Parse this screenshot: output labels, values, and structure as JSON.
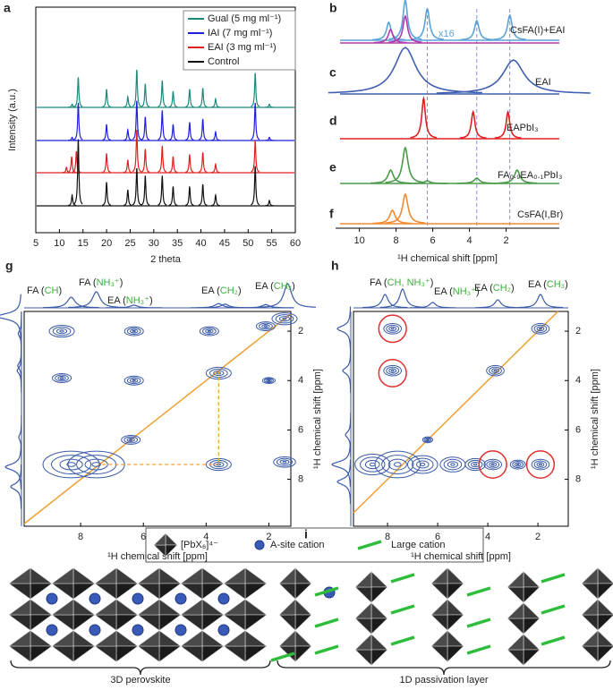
{
  "chart_data": [
    {
      "type": "xrd",
      "label": "a",
      "xlabel": "2 theta",
      "ylabel": "Intensity (a.u.)",
      "xlim": [
        5,
        60
      ],
      "xticks": [
        5,
        10,
        15,
        20,
        25,
        30,
        35,
        40,
        45,
        50,
        55,
        60
      ],
      "legend": "upper right",
      "peak_width": 0.15,
      "series": [
        {
          "name": "Gual (5 mg ml⁻¹)",
          "color": "#1a8a7a",
          "x": [
            12.7,
            14.0,
            20.0,
            24.5,
            26.4,
            28.2,
            31.8,
            34.1,
            37.6,
            40.4,
            43.1,
            51.5,
            54.5
          ],
          "values": [
            3,
            28,
            17,
            10,
            35,
            22,
            25,
            15,
            17,
            18,
            8,
            32,
            3
          ]
        },
        {
          "name": "IAI (7 mg ml⁻¹)",
          "color": "#1f1fe0",
          "x": [
            12.7,
            14.0,
            20.0,
            24.5,
            26.4,
            28.2,
            31.8,
            34.1,
            37.6,
            40.4,
            43.1,
            51.5,
            54.5
          ],
          "values": [
            3,
            35,
            15,
            10,
            37,
            22,
            28,
            15,
            17,
            20,
            8,
            35,
            3
          ]
        },
        {
          "name": "EAI (3 mg ml⁻¹)",
          "color": "#e02020",
          "x": [
            11.5,
            12.6,
            13.6,
            20.0,
            24.5,
            26.4,
            28.2,
            31.8,
            34.1,
            37.6,
            40.4,
            43.1,
            51.5
          ],
          "values": [
            5,
            15,
            20,
            18,
            12,
            40,
            22,
            25,
            15,
            17,
            19,
            8,
            30
          ]
        },
        {
          "name": "Control",
          "color": "#111111",
          "x": [
            12.7,
            14.0,
            20.0,
            24.5,
            26.4,
            28.2,
            31.8,
            34.1,
            37.6,
            40.4,
            43.1,
            51.5,
            54.5
          ],
          "values": [
            10,
            62,
            22,
            15,
            35,
            28,
            28,
            18,
            18,
            20,
            10,
            37,
            5
          ]
        }
      ]
    },
    {
      "type": "nmr",
      "xlabel": "¹H chemical shift [ppm]",
      "xlim": [
        11.3,
        -0.9
      ],
      "xticks": [
        10,
        8,
        6,
        4,
        2
      ],
      "guides": [
        6.3,
        3.6,
        1.8
      ],
      "annotation": "x16",
      "series": [
        {
          "label": "b",
          "name": "CsFA(I)+EAI",
          "color": "#5ba3d9",
          "width": 0.15,
          "x": [
            8.4,
            7.5,
            6.3,
            3.6,
            1.8
          ],
          "values": [
            20,
            45,
            35,
            22,
            28
          ]
        },
        {
          "color": "#b03bb0",
          "width": 0.15,
          "x": [
            8.3,
            7.5
          ],
          "values": [
            15,
            30
          ]
        },
        {
          "label": "c",
          "name": "EAI",
          "color": "#3f5fb0",
          "width": 0.7,
          "x": [
            7.5,
            1.6
          ],
          "values": [
            52,
            38
          ]
        },
        {
          "label": "d",
          "name": "EAPbI₃",
          "color": "#e02020",
          "width": 0.12,
          "x": [
            6.5,
            3.8,
            1.9
          ],
          "values": [
            45,
            30,
            30
          ]
        },
        {
          "label": "e",
          "name": "FA₀.₉EA₀.₁PbI₃",
          "color": "#4a9a4a",
          "width": 0.18,
          "x": [
            8.3,
            7.5,
            6.3,
            3.6,
            1.4
          ],
          "values": [
            15,
            40,
            3,
            6,
            15
          ]
        },
        {
          "label": "f",
          "name": "CsFA(I,Br)",
          "color": "#f08a30",
          "width": 0.18,
          "x": [
            8.2,
            7.5
          ],
          "values": [
            15,
            33
          ]
        }
      ]
    },
    {
      "type": "contour",
      "label": "g",
      "xlabel": "¹H chemical shift [ppm]",
      "ylabel": "¹H chemical shift [ppm]",
      "xlim": [
        9.8,
        1.3
      ],
      "ylim": [
        1.2,
        9.9
      ],
      "xticks": [
        8,
        6,
        4,
        2
      ],
      "yticks": [
        2,
        4,
        6,
        8
      ],
      "color": "#3a5aa8",
      "diagonal_color": "#f0a030",
      "x": [
        8.6,
        6.3,
        3.9,
        2.1,
        1.5,
        8.6,
        6.3,
        3.6,
        2.0,
        8.3,
        7.5,
        6.4,
        3.6,
        1.5
      ],
      "y": [
        2.0,
        2.0,
        2.0,
        1.8,
        1.5,
        3.9,
        4.0,
        3.7,
        4.0,
        7.4,
        7.4,
        6.4,
        7.4,
        7.3
      ],
      "sizes": [
        0.4,
        0.3,
        0.3,
        0.3,
        0.4,
        0.3,
        0.3,
        0.4,
        0.2,
        0.9,
        0.9,
        0.3,
        0.4,
        0.35
      ],
      "projection_x": [
        8.3,
        7.5,
        6.3,
        3.6,
        3.4,
        2.1,
        1.4
      ],
      "projection_values": [
        20,
        30,
        5,
        8,
        7,
        6,
        45
      ],
      "guide_x": [
        3.6,
        3.6,
        7.4
      ],
      "guide_y": [
        3.6,
        7.4,
        7.4
      ],
      "annotations": [
        [
          "FA (",
          "CH",
          ")"
        ],
        [
          "FA (",
          "NH₃⁺",
          ")"
        ],
        [
          "EA (",
          "NH₃⁺",
          ")"
        ],
        [
          "EA (",
          "CH₂",
          ")"
        ],
        [
          "EA (",
          "CH₃",
          ")"
        ]
      ]
    },
    {
      "type": "contour",
      "label": "h",
      "xlabel": "¹H chemical shift [ppm]",
      "ylabel": "¹H chemical shift [ppm]",
      "xlim": [
        9.36,
        0.79
      ],
      "ylim": [
        1.2,
        9.9
      ],
      "xticks": [
        8,
        6,
        4,
        2
      ],
      "yticks": [
        2,
        4,
        6,
        8
      ],
      "color": "#3a5aa8",
      "diagonal_color": "#f0a030",
      "x": [
        7.8,
        7.8,
        3.7,
        1.9,
        8.6,
        7.6,
        6.6,
        5.4,
        4.5,
        3.8,
        2.8,
        1.9,
        6.4
      ],
      "y": [
        1.9,
        3.6,
        3.6,
        1.9,
        7.4,
        7.4,
        7.4,
        7.4,
        7.4,
        7.4,
        7.4,
        7.4,
        6.4
      ],
      "sizes": [
        0.35,
        0.35,
        0.35,
        0.35,
        0.7,
        0.9,
        0.6,
        0.5,
        0.4,
        0.35,
        0.3,
        0.35,
        0.2
      ],
      "projection_x": [
        8.1,
        7.4,
        6.2,
        3.6,
        1.9
      ],
      "projection_values": [
        25,
        35,
        10,
        15,
        25
      ],
      "circle_x": [
        7.8,
        7.8,
        3.8,
        1.9
      ],
      "circle_y": [
        1.9,
        3.7,
        7.4,
        7.4
      ],
      "circle_r": 0.55,
      "circle_color": "#e03030",
      "annotations": [
        [
          "FA (",
          "CH, NH₃⁺",
          ")"
        ],
        [
          "EA (",
          "NH₃⁺",
          ")"
        ],
        [
          "EA (",
          "CH₂",
          ")"
        ],
        [
          "EA (",
          "CH₃",
          ")"
        ]
      ]
    }
  ],
  "diagram": {
    "label": "i",
    "legend": [
      "[PbX₆]⁴⁻",
      "A-site cation",
      "Large cation"
    ],
    "regions": [
      "3D perovskite",
      "1D passivation layer"
    ]
  }
}
